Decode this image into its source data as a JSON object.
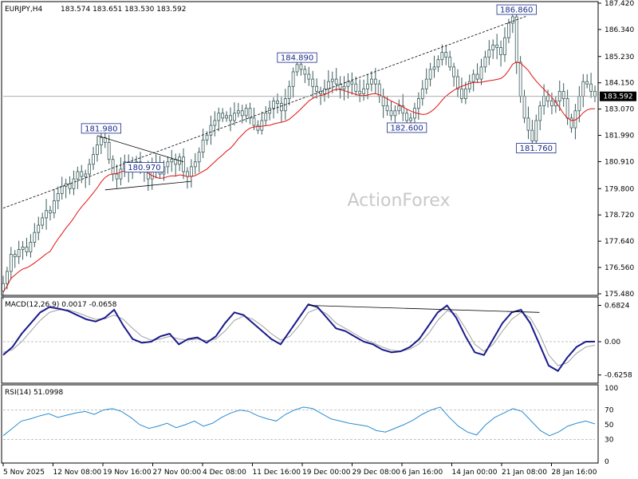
{
  "header": {
    "symbol": "EURJPY,H4",
    "ohlc": "183.574 183.651 183.530 183.592",
    "macd": "MACD(12,26,9) 0.0017 -0.0658",
    "rsi": "RSI(14) 51.0998"
  },
  "watermark": "ActionForex",
  "current_price": "183.592",
  "colors": {
    "candle": "#3a5a5a",
    "ma": "#e01010",
    "macd": "#1a1a8c",
    "signal": "#a0a0a0",
    "rsi": "#2a8cd0",
    "tag": "#1a2a8a",
    "current_line": "#a0a0a0"
  },
  "chart_data": [
    {
      "type": "candlestick",
      "title": "EURJPY,H4",
      "x_ticks": [
        "5 Nov 2025",
        "12 Nov 08:00",
        "19 Nov 16:00",
        "27 Nov 00:00",
        "4 Dec 08:00",
        "11 Dec 16:00",
        "19 Dec 00:00",
        "29 Dec 08:00",
        "6 Jan 16:00",
        "14 Jan 00:00",
        "21 Jan 08:00",
        "28 Jan 16:00"
      ],
      "y_ticks": [
        "187.420",
        "186.340",
        "185.230",
        "184.150",
        "183.070",
        "181.990",
        "180.910",
        "179.800",
        "178.720",
        "177.640",
        "176.560",
        "175.480"
      ],
      "ylim": [
        175.48,
        187.42
      ],
      "series": [
        {
          "name": "",
          "values": [
            175.9,
            176.4,
            177.1,
            177.0,
            177.3,
            177.4,
            177.2,
            177.6,
            178.0,
            178.3,
            178.6,
            178.9,
            178.8,
            179.3,
            179.6,
            179.9,
            180.0,
            179.8,
            180.2,
            180.5,
            180.3,
            180.4,
            180.8,
            181.2,
            181.6,
            181.9,
            181.7,
            181.0,
            180.4,
            180.2,
            180.6,
            180.9,
            180.5,
            180.8,
            180.9,
            180.6,
            180.5,
            180.2,
            180.6,
            180.8,
            180.4,
            180.7,
            180.9,
            181.0,
            180.8,
            181.1,
            180.5,
            180.3,
            180.7,
            180.9,
            181.3,
            181.8,
            182.0,
            182.4,
            182.6,
            182.9,
            182.7,
            182.8,
            182.6,
            182.9,
            183.0,
            182.8,
            183.1,
            182.7,
            182.4,
            182.2,
            182.6,
            182.9,
            183.1,
            183.4,
            183.3,
            183.0,
            183.5,
            184.0,
            184.6,
            184.9,
            184.7,
            184.5,
            184.3,
            184.0,
            183.8,
            183.7,
            183.9,
            184.2,
            184.3,
            184.1,
            183.9,
            184.0,
            184.2,
            184.1,
            183.8,
            183.7,
            183.9,
            184.1,
            184.3,
            184.1,
            183.6,
            183.2,
            183.0,
            182.8,
            183.0,
            183.2,
            182.9,
            182.6,
            182.7,
            183.1,
            183.5,
            183.9,
            184.3,
            184.7,
            184.8,
            185.1,
            185.4,
            185.2,
            184.8,
            184.4,
            183.9,
            183.5,
            183.9,
            184.2,
            184.5,
            184.3,
            184.8,
            185.2,
            185.5,
            185.7,
            185.6,
            185.3,
            186.0,
            186.6,
            186.86,
            185.0,
            183.6,
            182.7,
            182.2,
            181.76,
            182.6,
            183.2,
            183.6,
            183.4,
            183.2,
            183.4,
            183.8,
            183.5,
            182.7,
            182.3,
            183.0,
            183.6,
            184.2,
            184.1,
            183.8,
            183.592
          ]
        }
      ],
      "overlays": [
        {
          "type": "moving_average",
          "color": "#e01010"
        },
        {
          "type": "trendline",
          "style": "dashed",
          "from": 179.0,
          "to": 186.9
        },
        {
          "type": "triangle",
          "upper": [
            181.98,
            180.9
          ],
          "lower": [
            179.75,
            180.1
          ]
        }
      ],
      "annotations": [
        "186.860",
        "184.890",
        "181.980",
        "182.600",
        "181.760",
        "180.970"
      ],
      "current": "183.592"
    },
    {
      "type": "line",
      "title": "MACD(12,26,9) 0.0017 -0.0658",
      "y_ticks": [
        "0.6824",
        "0.00",
        "-0.6258"
      ],
      "ylim": [
        -0.75,
        0.78
      ],
      "series": [
        {
          "name": "",
          "values": [
            -0.25,
            -0.1,
            0.15,
            0.35,
            0.55,
            0.65,
            0.62,
            0.58,
            0.5,
            0.42,
            0.38,
            0.45,
            0.6,
            0.3,
            0.05,
            -0.02,
            0.0,
            0.1,
            0.15,
            -0.05,
            0.05,
            0.08,
            -0.02,
            0.1,
            0.35,
            0.55,
            0.5,
            0.35,
            0.2,
            0.05,
            -0.05,
            0.2,
            0.45,
            0.7,
            0.65,
            0.45,
            0.25,
            0.2,
            0.1,
            0.0,
            -0.05,
            -0.15,
            -0.2,
            -0.18,
            -0.1,
            0.05,
            0.3,
            0.55,
            0.68,
            0.45,
            0.1,
            -0.2,
            -0.25,
            0.05,
            0.35,
            0.55,
            0.6,
            0.35,
            -0.05,
            -0.45,
            -0.55,
            -0.3,
            -0.1,
            0.0,
            0.0017
          ]
        },
        {
          "name": "",
          "values": [
            -0.2,
            -0.15,
            0.0,
            0.2,
            0.4,
            0.55,
            0.6,
            0.6,
            0.55,
            0.48,
            0.42,
            0.43,
            0.5,
            0.42,
            0.25,
            0.1,
            0.03,
            0.05,
            0.1,
            0.05,
            0.03,
            0.05,
            0.02,
            0.05,
            0.2,
            0.4,
            0.48,
            0.42,
            0.3,
            0.15,
            0.03,
            0.1,
            0.3,
            0.55,
            0.62,
            0.52,
            0.35,
            0.25,
            0.15,
            0.05,
            -0.02,
            -0.1,
            -0.16,
            -0.18,
            -0.14,
            -0.04,
            0.15,
            0.4,
            0.58,
            0.52,
            0.25,
            -0.05,
            -0.18,
            -0.05,
            0.2,
            0.42,
            0.55,
            0.45,
            0.15,
            -0.25,
            -0.45,
            -0.4,
            -0.22,
            -0.1,
            -0.0658
          ]
        }
      ],
      "trendline": [
        0.6824,
        0.55
      ]
    },
    {
      "type": "line",
      "title": "RSI(14) 51.0998",
      "y_ticks": [
        "100",
        "70",
        "50",
        "30",
        "0"
      ],
      "ylim": [
        0,
        100
      ],
      "series": [
        {
          "name": "",
          "values": [
            35,
            45,
            55,
            58,
            62,
            65,
            60,
            63,
            66,
            68,
            64,
            70,
            72,
            68,
            60,
            50,
            45,
            48,
            52,
            46,
            50,
            55,
            48,
            52,
            60,
            66,
            70,
            68,
            62,
            58,
            55,
            64,
            70,
            74,
            72,
            65,
            58,
            55,
            52,
            50,
            48,
            42,
            40,
            45,
            50,
            56,
            64,
            70,
            74,
            60,
            48,
            40,
            36,
            50,
            60,
            66,
            72,
            68,
            55,
            42,
            35,
            40,
            48,
            52,
            55,
            51.0998
          ]
        }
      ],
      "levels": [
        70,
        30
      ]
    }
  ]
}
